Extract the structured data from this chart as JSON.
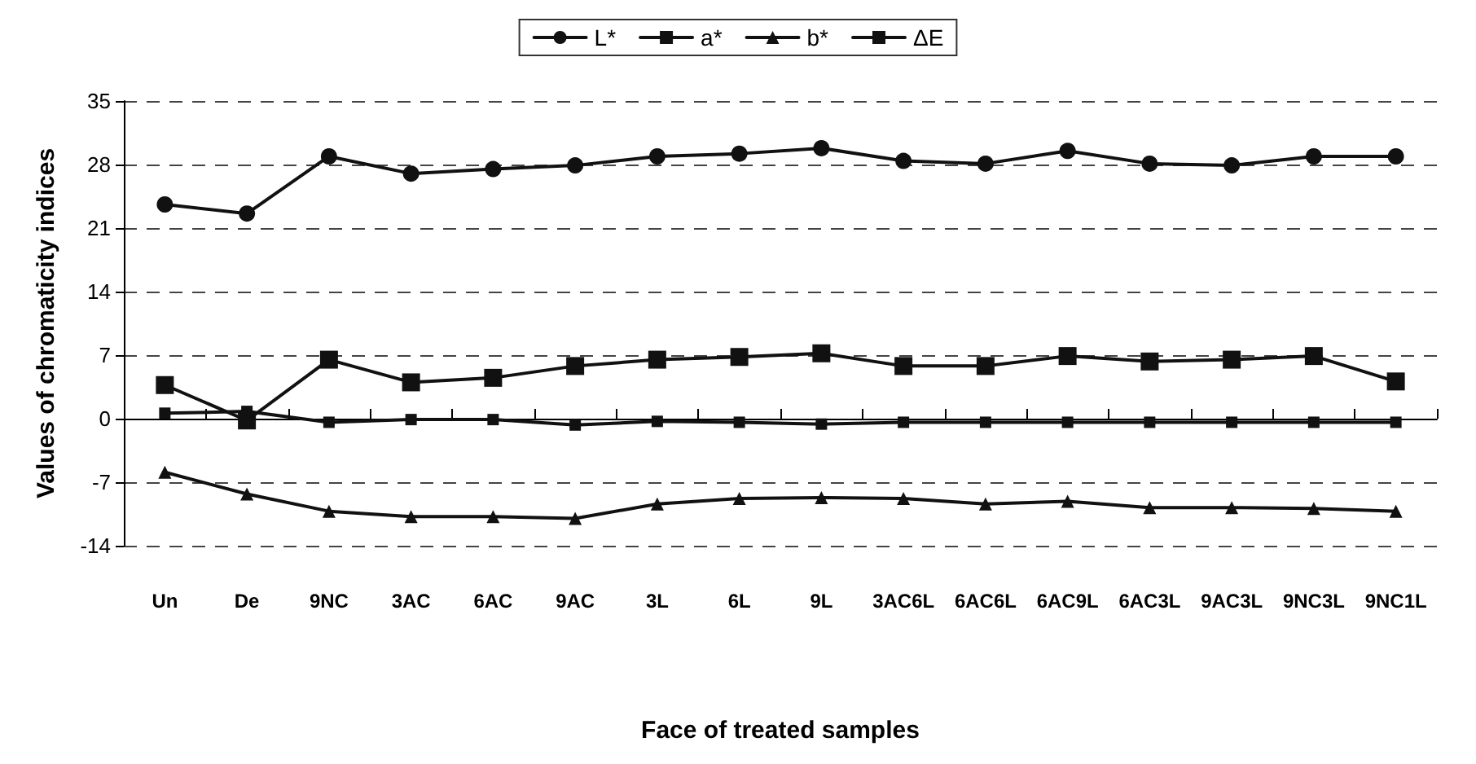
{
  "chart_data": {
    "type": "line",
    "xlabel": "Face of treated samples",
    "ylabel": "Values of chromaticity indices",
    "categories": [
      "Un",
      "De",
      "9NC",
      "3AC",
      "6AC",
      "9AC",
      "3L",
      "6L",
      "9L",
      "3AC6L",
      "6AC6L",
      "6AC9L",
      "6AC3L",
      "9AC3L",
      "9NC3L",
      "9NC1L"
    ],
    "series": [
      {
        "name": "L*",
        "color": "#111111",
        "marker": "circle",
        "values": [
          23.6,
          22.6,
          28.9,
          27.0,
          27.5,
          27.9,
          28.9,
          29.2,
          29.8,
          28.4,
          28.1,
          29.5,
          28.1,
          27.9,
          28.9,
          28.9
        ]
      },
      {
        "name": "a*",
        "color": "#111111",
        "marker": "square",
        "values": [
          0.6,
          0.8,
          -0.4,
          -0.1,
          -0.1,
          -0.7,
          -0.3,
          -0.4,
          -0.6,
          -0.4,
          -0.4,
          -0.4,
          -0.4,
          -0.4,
          -0.4,
          -0.4
        ]
      },
      {
        "name": "b*",
        "color": "#111111",
        "marker": "triangle",
        "values": [
          -5.9,
          -8.3,
          -10.2,
          -10.8,
          -10.8,
          -11.0,
          -9.4,
          -8.8,
          -8.7,
          -8.8,
          -9.4,
          -9.1,
          -9.8,
          -9.8,
          -9.9,
          -10.2
        ]
      },
      {
        "name": "ΔE",
        "color": "#111111",
        "marker": "square",
        "values": [
          3.7,
          -0.2,
          6.5,
          4.0,
          4.5,
          5.8,
          6.5,
          6.8,
          7.2,
          5.8,
          5.8,
          6.9,
          6.3,
          6.5,
          6.9,
          4.1
        ]
      }
    ],
    "ylim": [
      -14,
      35
    ],
    "yticks": [
      -14,
      -7,
      0,
      7,
      14,
      21,
      28,
      35
    ],
    "grid": "y",
    "legend": "top",
    "line_style": "solid"
  }
}
